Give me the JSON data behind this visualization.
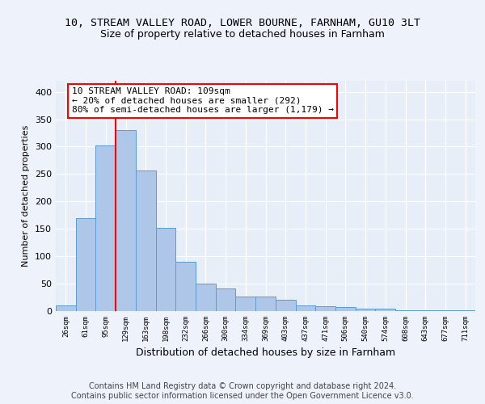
{
  "title1": "10, STREAM VALLEY ROAD, LOWER BOURNE, FARNHAM, GU10 3LT",
  "title2": "Size of property relative to detached houses in Farnham",
  "xlabel": "Distribution of detached houses by size in Farnham",
  "ylabel": "Number of detached properties",
  "footer": "Contains HM Land Registry data © Crown copyright and database right 2024.\nContains public sector information licensed under the Open Government Licence v3.0.",
  "bar_labels": [
    "26sqm",
    "61sqm",
    "95sqm",
    "129sqm",
    "163sqm",
    "198sqm",
    "232sqm",
    "266sqm",
    "300sqm",
    "334sqm",
    "369sqm",
    "403sqm",
    "437sqm",
    "471sqm",
    "506sqm",
    "540sqm",
    "574sqm",
    "608sqm",
    "643sqm",
    "677sqm",
    "711sqm"
  ],
  "bar_values": [
    10,
    170,
    302,
    330,
    257,
    152,
    90,
    50,
    42,
    27,
    27,
    20,
    11,
    9,
    8,
    4,
    4,
    1,
    2,
    1,
    2
  ],
  "bar_color": "#aec6e8",
  "bar_edge_color": "#5b9bd5",
  "vline_color": "red",
  "annotation_text": "10 STREAM VALLEY ROAD: 109sqm\n← 20% of detached houses are smaller (292)\n80% of semi-detached houses are larger (1,179) →",
  "annotation_box_color": "white",
  "annotation_box_edge_color": "red",
  "ylim": [
    0,
    420
  ],
  "yticks": [
    0,
    50,
    100,
    150,
    200,
    250,
    300,
    350,
    400
  ],
  "bg_color": "#eef2fa",
  "plot_bg_color": "#e8eef8",
  "grid_color": "#ffffff",
  "title1_fontsize": 9.5,
  "title2_fontsize": 9,
  "xlabel_fontsize": 9,
  "ylabel_fontsize": 8,
  "footer_fontsize": 7,
  "ann_fontsize": 8
}
